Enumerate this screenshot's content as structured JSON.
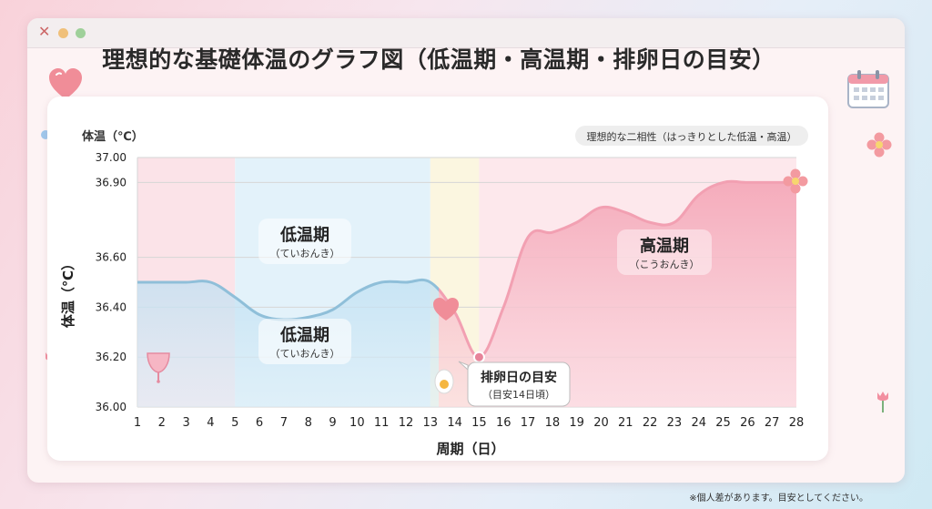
{
  "window": {
    "title": "理想的な基礎体温のグラフ図（低温期・高温期・排卵日の目安）"
  },
  "footnote": "※個人差があります。目安としてください。",
  "chart_data": {
    "type": "area",
    "ylabel_top": "体温（℃）",
    "ylabel": "体温（℃）",
    "xlabel": "周期（日）",
    "ylim": [
      36.0,
      37.0
    ],
    "yticks": [
      "37.00",
      "36.90",
      "36.60",
      "36.40",
      "36.20",
      "36.00"
    ],
    "x": [
      1,
      2,
      3,
      4,
      5,
      6,
      7,
      8,
      9,
      10,
      11,
      12,
      13,
      14,
      15,
      16,
      17,
      18,
      19,
      20,
      21,
      22,
      23,
      24,
      25,
      26,
      27,
      28
    ],
    "values": [
      36.5,
      36.5,
      36.5,
      36.5,
      36.44,
      36.37,
      36.35,
      36.36,
      36.39,
      36.46,
      36.5,
      36.5,
      36.5,
      36.38,
      36.2,
      36.4,
      36.68,
      36.7,
      36.74,
      36.8,
      36.78,
      36.74,
      36.74,
      36.85,
      36.9,
      36.9,
      36.9,
      36.9
    ],
    "badge": "理想的な二相性（はっきりとした低温・高温）",
    "annotations": {
      "low_upper": {
        "title": "低温期",
        "reading": "（ていおんき）"
      },
      "low_lower": {
        "title": "低温期",
        "reading": "（ていおんき）"
      },
      "high": {
        "title": "高温期",
        "reading": "（こうおんき）"
      },
      "ovulation": {
        "title": "排卵日の目安",
        "sub": "（目安14日頃）"
      }
    },
    "colors": {
      "line": "#8fbfd9",
      "menstrual_band": "#fbe3e8",
      "low_band": "#e3f2fa",
      "ovulation_band": "#fbf6e0",
      "high_band": "#fde8ec",
      "high_fill": "#f6b3c2",
      "low_fill": "#a9d5ee",
      "marker": "#e7849a"
    },
    "grid": true
  }
}
